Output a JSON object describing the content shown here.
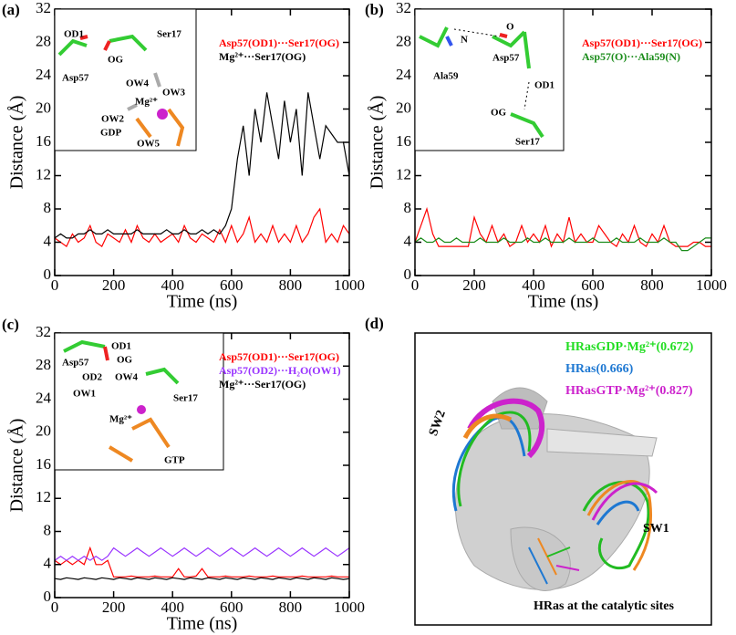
{
  "chart_data": [
    {
      "type": "line",
      "panel_label": "(a)",
      "xlabel": "Time (ns)",
      "ylabel": "Distance (Å)",
      "xlim": [
        0,
        1000
      ],
      "ylim": [
        0,
        32
      ],
      "xticks": [
        0,
        200,
        400,
        600,
        800,
        1000
      ],
      "yticks": [
        0,
        4,
        8,
        12,
        16,
        20,
        24,
        28,
        32
      ],
      "x": [
        0,
        20,
        40,
        60,
        80,
        100,
        120,
        140,
        160,
        180,
        200,
        220,
        240,
        260,
        280,
        300,
        320,
        340,
        360,
        380,
        400,
        420,
        440,
        460,
        480,
        500,
        520,
        540,
        560,
        580,
        600,
        620,
        640,
        660,
        680,
        700,
        720,
        740,
        760,
        780,
        800,
        820,
        840,
        860,
        880,
        900,
        920,
        940,
        960,
        980,
        1000
      ],
      "series": [
        {
          "name": "Asp57(OD1)···Ser17(OG)",
          "color": "#ff0000",
          "values": [
            4.5,
            4,
            3.5,
            5,
            4,
            4.5,
            6,
            4,
            3.5,
            5,
            4.5,
            4,
            5.5,
            4,
            6,
            4.5,
            4,
            5,
            4,
            4.5,
            5,
            4,
            6,
            4.5,
            4,
            5,
            4.5,
            4,
            5.5,
            4,
            6,
            4,
            5,
            7,
            4,
            5,
            4,
            6,
            4,
            5,
            4,
            6,
            4,
            5,
            7,
            8,
            4,
            5,
            4,
            6,
            5
          ]
        },
        {
          "name": "Mg²⁺···Ser17(OG)",
          "color": "#000000",
          "values": [
            4.5,
            5,
            4.5,
            4.5,
            5,
            5,
            5.5,
            5,
            5,
            5.5,
            5,
            5,
            5,
            5,
            5.5,
            5,
            5,
            5,
            5,
            5.5,
            5,
            5,
            5.5,
            5,
            5,
            5.5,
            5,
            5.5,
            5,
            6,
            8,
            14,
            18,
            12,
            20,
            16,
            22,
            18,
            14,
            21,
            16,
            20,
            12,
            22,
            18,
            14,
            18,
            17,
            16,
            16,
            12
          ]
        }
      ],
      "annotations": [
        "OD1",
        "Ser17",
        "OG",
        "Asp57",
        "OW4",
        "OW3",
        "Mg²⁺",
        "OW2",
        "GDP",
        "OW5"
      ]
    },
    {
      "type": "line",
      "panel_label": "(b)",
      "xlabel": "Time (ns)",
      "ylabel": "Distance (Å)",
      "xlim": [
        0,
        1000
      ],
      "ylim": [
        0,
        32
      ],
      "xticks": [
        0,
        200,
        400,
        600,
        800,
        1000
      ],
      "yticks": [
        0,
        4,
        8,
        12,
        16,
        20,
        24,
        28,
        32
      ],
      "x": [
        0,
        20,
        40,
        60,
        80,
        100,
        120,
        140,
        160,
        180,
        200,
        220,
        240,
        260,
        280,
        300,
        320,
        340,
        360,
        380,
        400,
        420,
        440,
        460,
        480,
        500,
        520,
        540,
        560,
        580,
        600,
        620,
        640,
        660,
        680,
        700,
        720,
        740,
        760,
        780,
        800,
        820,
        840,
        860,
        880,
        900,
        920,
        940,
        960,
        980,
        1000
      ],
      "series": [
        {
          "name": "Asp57(OD1)···Ser17(OG)",
          "color": "#ff0000",
          "values": [
            4,
            6,
            8,
            5,
            3.5,
            3.5,
            3.5,
            3.5,
            3.5,
            3.5,
            7,
            5,
            4,
            6,
            4,
            5,
            3.5,
            4,
            6,
            4,
            5,
            4,
            6,
            3.5,
            5,
            4,
            7,
            4,
            5,
            4,
            4,
            6,
            5,
            4,
            3.5,
            5,
            4,
            6,
            4,
            3.5,
            5,
            4,
            6,
            4,
            3.5,
            3.5,
            3.5,
            4,
            4,
            3.5,
            3.5
          ]
        },
        {
          "name": "Asp57(O)···Ala59(N)",
          "color": "#1a8c1a",
          "values": [
            4,
            4.5,
            4,
            4,
            4.5,
            4,
            4,
            4.5,
            4,
            4,
            4,
            4.5,
            4,
            4,
            4,
            4.5,
            4,
            4,
            4,
            4.5,
            4,
            4,
            4.5,
            4,
            4,
            4,
            4.5,
            4,
            4,
            4,
            4.5,
            4,
            4,
            4,
            4.5,
            4,
            4,
            4,
            4.5,
            4,
            4,
            4,
            4.5,
            4,
            4,
            3,
            3,
            3.5,
            4,
            4.5,
            4.5
          ]
        }
      ],
      "annotations": [
        "N",
        "O",
        "Ala59",
        "Asp57",
        "OD1",
        "OG",
        "Ser17"
      ]
    },
    {
      "type": "line",
      "panel_label": "(c)",
      "xlabel": "Time (ns)",
      "ylabel": "Distance (Å)",
      "xlim": [
        0,
        1000
      ],
      "ylim": [
        0,
        32
      ],
      "xticks": [
        0,
        200,
        400,
        600,
        800,
        1000
      ],
      "yticks": [
        0,
        4,
        8,
        12,
        16,
        20,
        24,
        28,
        32
      ],
      "x": [
        0,
        20,
        40,
        60,
        80,
        100,
        120,
        140,
        160,
        180,
        200,
        220,
        240,
        260,
        280,
        300,
        320,
        340,
        360,
        380,
        400,
        420,
        440,
        460,
        480,
        500,
        520,
        540,
        560,
        580,
        600,
        620,
        640,
        660,
        680,
        700,
        720,
        740,
        760,
        780,
        800,
        820,
        840,
        860,
        880,
        900,
        920,
        940,
        960,
        980,
        1000
      ],
      "series": [
        {
          "name": "Asp57(OD1)···Ser17(OG)",
          "color": "#ff0000",
          "values": [
            4.5,
            4,
            4.5,
            4,
            4.5,
            4,
            6,
            4,
            4,
            4.5,
            2.5,
            2.5,
            2.5,
            2.6,
            2.5,
            2.5,
            2.5,
            2.6,
            2.5,
            2.5,
            2.5,
            3.5,
            2.5,
            2.5,
            2.6,
            3.5,
            2.5,
            2.5,
            2.5,
            2.6,
            2.5,
            2.5,
            2.5,
            2.6,
            2.5,
            2.5,
            2.5,
            2.6,
            2.5,
            2.5,
            2.5,
            2.5,
            2.6,
            2.5,
            2.5,
            2.5,
            2.5,
            2.6,
            2.5,
            2.5,
            2.5
          ]
        },
        {
          "name": "Asp57(OD2)···H₂O(OW1)",
          "color": "#9933ff",
          "values": [
            4.5,
            5,
            4.5,
            5,
            4.5,
            5,
            4.5,
            5,
            4.5,
            5,
            6,
            5.5,
            5,
            5.5,
            6,
            5.5,
            5,
            5.5,
            6,
            5.5,
            5,
            5.5,
            6,
            5.5,
            5,
            5.5,
            6,
            5.5,
            5,
            5.5,
            6,
            5.5,
            5,
            5.5,
            6,
            5.5,
            5,
            5.5,
            6,
            5.5,
            5,
            5.5,
            6,
            5.5,
            5,
            5.5,
            6,
            5.5,
            5,
            5.5,
            6
          ]
        },
        {
          "name": "Mg²⁺···Ser17(OG)",
          "color": "#000000",
          "values": [
            2.3,
            2.2,
            2.4,
            2.3,
            2.2,
            2.4,
            2.3,
            2.2,
            2.4,
            2.3,
            2.2,
            2.4,
            2.3,
            2.2,
            2.4,
            2.3,
            2.2,
            2.4,
            2.3,
            2.2,
            2.4,
            2.3,
            2.2,
            2.4,
            2.3,
            2.2,
            2.4,
            2.3,
            2.2,
            2.4,
            2.3,
            2.2,
            2.4,
            2.3,
            2.2,
            2.4,
            2.3,
            2.2,
            2.4,
            2.3,
            2.2,
            2.4,
            2.3,
            2.2,
            2.4,
            2.3,
            2.2,
            2.4,
            2.3,
            2.2,
            2.3
          ]
        }
      ],
      "annotations": [
        "OD1",
        "Asp57",
        "OG",
        "OD2",
        "OW4",
        "OW1",
        "Ser17",
        "Mg²⁺",
        "GTP"
      ]
    }
  ],
  "panel_d": {
    "panel_label": "(d)",
    "legend": [
      {
        "name": "HRasGDP·Mg²⁺(0.672)",
        "color": "#22dd22"
      },
      {
        "name": "HRas(0.666)",
        "color": "#1e78d2"
      },
      {
        "name": "HRasGTP·Mg²⁺(0.827)",
        "color": "#cc22cc"
      }
    ],
    "labels": [
      "SW2",
      "SW1",
      "HRas at the catalytic sites"
    ]
  }
}
